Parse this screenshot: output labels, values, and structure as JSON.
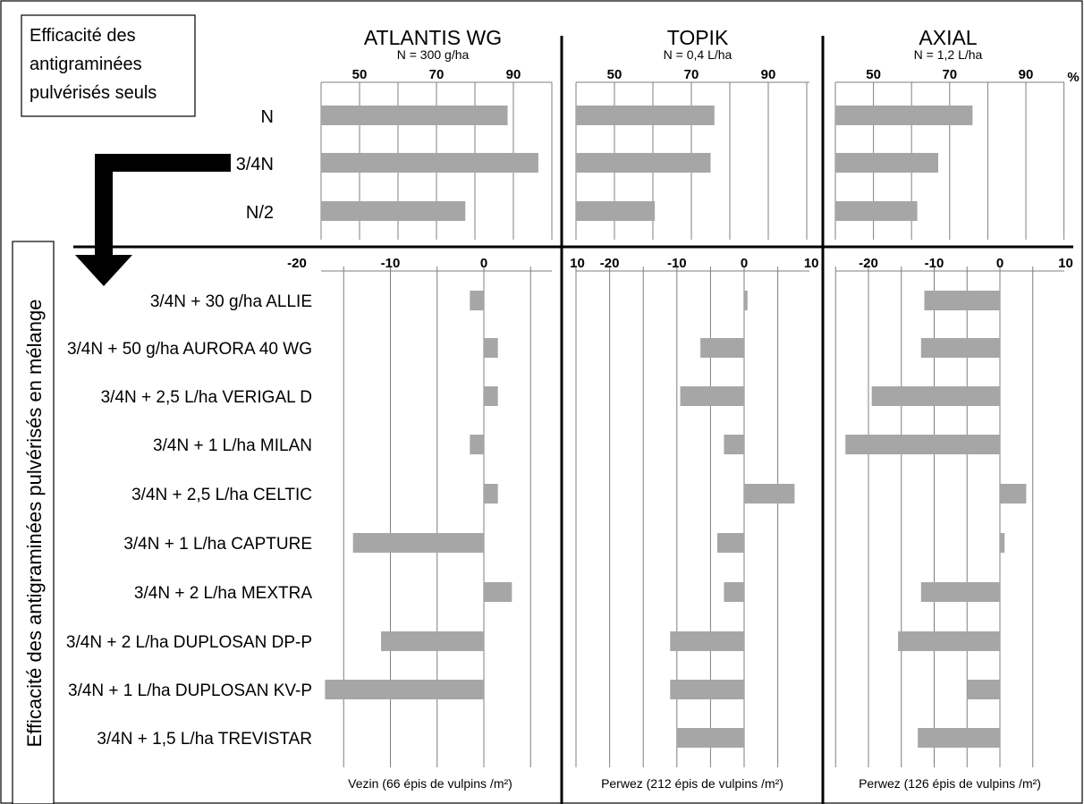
{
  "top_box_text": [
    "Efficacité des",
    "antigraminées",
    "pulvérisés seuls"
  ],
  "vertical_label": "Efficacité des antigraminées pulvérisés en mélange",
  "percent_sign": "%",
  "colors": {
    "bar": "#a6a6a6",
    "gridline": "#7f7f7f",
    "divider": "#000000",
    "arrow": "#000000"
  },
  "icons": {
    "arrow": "elbow-down-arrow-icon"
  },
  "top_row_labels": [
    "N",
    "3/4N",
    "N/2"
  ],
  "bottom_row_labels": [
    "3/4N + 30 g/ha ALLIE",
    "3/4N + 50 g/ha AURORA 40 WG",
    "3/4N + 2,5 L/ha VERIGAL D",
    "3/4N + 1 L/ha MILAN",
    "3/4N + 2,5 L/ha CELTIC",
    "3/4N + 1 L/ha CAPTURE",
    "3/4N + 2 L/ha MEXTRA",
    "3/4N + 2 L/ha DUPLOSAN DP-P",
    "3/4N + 1 L/ha DUPLOSAN KV-P",
    "3/4N + 1,5 L/ha TREVISTAR"
  ],
  "chart_data": [
    {
      "product": "ATLANTIS WG",
      "dose": "N = 300 g/ha",
      "site": "Vezin (66 épis de vulpins /m²)",
      "top": {
        "type": "bar",
        "orientation": "horizontal",
        "categories": [
          "N",
          "3/4N",
          "N/2"
        ],
        "values": [
          88.5,
          96.5,
          77.5
        ],
        "ticks": [
          50,
          70,
          90
        ],
        "xlim": [
          40,
          100
        ]
      },
      "bottom": {
        "type": "bar",
        "orientation": "horizontal",
        "categories": [
          "3/4N + 30 g/ha ALLIE",
          "3/4N + 50 g/ha AURORA 40 WG",
          "3/4N + 2,5 L/ha VERIGAL D",
          "3/4N + 1 L/ha MILAN",
          "3/4N + 2,5 L/ha CELTIC",
          "3/4N + 1 L/ha CAPTURE",
          "3/4N + 2 L/ha MEXTRA",
          "3/4N + 2 L/ha DUPLOSAN DP-P",
          "3/4N + 1 L/ha DUPLOSAN KV-P",
          "3/4N + 1,5 L/ha TREVISTAR"
        ],
        "values": [
          -1.5,
          1.5,
          1.5,
          -1.5,
          1.5,
          -14,
          3,
          -11,
          -17,
          0
        ],
        "ticks": [
          -20,
          -10,
          0,
          10
        ],
        "xlim": [
          -25,
          10
        ]
      }
    },
    {
      "product": "TOPIK",
      "dose": "N = 0,4 L/ha",
      "site": "Perwez (212 épis de vulpins /m²)",
      "top": {
        "type": "bar",
        "orientation": "horizontal",
        "categories": [
          "N",
          "3/4N",
          "N/2"
        ],
        "values": [
          76,
          75,
          60.5
        ],
        "ticks": [
          50,
          70,
          90
        ],
        "xlim": [
          40,
          100
        ]
      },
      "bottom": {
        "type": "bar",
        "orientation": "horizontal",
        "categories": [
          "3/4N + 30 g/ha ALLIE",
          "3/4N + 50 g/ha AURORA 40 WG",
          "3/4N + 2,5 L/ha VERIGAL D",
          "3/4N + 1 L/ha MILAN",
          "3/4N + 2,5 L/ha CELTIC",
          "3/4N + 1 L/ha CAPTURE",
          "3/4N + 2 L/ha MEXTRA",
          "3/4N + 2 L/ha DUPLOSAN DP-P",
          "3/4N + 1 L/ha DUPLOSAN KV-P",
          "3/4N + 1,5 L/ha TREVISTAR"
        ],
        "values": [
          0.5,
          -6.5,
          -9.5,
          -3,
          7.5,
          -4,
          -3,
          -11,
          -11,
          -10
        ],
        "ticks": [
          -20,
          -10,
          0,
          10
        ],
        "xlim": [
          -25,
          10
        ]
      }
    },
    {
      "product": "AXIAL",
      "dose": "N = 1,2 L/ha",
      "site": "Perwez (126 épis de vulpins /m²)",
      "top": {
        "type": "bar",
        "orientation": "horizontal",
        "categories": [
          "N",
          "3/4N",
          "N/2"
        ],
        "values": [
          76,
          67,
          61.5
        ],
        "ticks": [
          50,
          70,
          90
        ],
        "xlim": [
          40,
          100
        ]
      },
      "bottom": {
        "type": "bar",
        "orientation": "horizontal",
        "categories": [
          "3/4N + 30 g/ha ALLIE",
          "3/4N + 50 g/ha AURORA 40 WG",
          "3/4N + 2,5 L/ha VERIGAL D",
          "3/4N + 1 L/ha MILAN",
          "3/4N + 2,5 L/ha CELTIC",
          "3/4N + 1 L/ha CAPTURE",
          "3/4N + 2 L/ha MEXTRA",
          "3/4N + 2 L/ha DUPLOSAN DP-P",
          "3/4N + 1 L/ha DUPLOSAN KV-P",
          "3/4N + 1,5 L/ha TREVISTAR"
        ],
        "values": [
          -11.5,
          -12,
          -19.5,
          -23.5,
          4,
          0.7,
          -12,
          -15.5,
          -5,
          -12.5
        ],
        "ticks": [
          -20,
          -10,
          0,
          10
        ],
        "xlim": [
          -25,
          10
        ]
      }
    }
  ]
}
